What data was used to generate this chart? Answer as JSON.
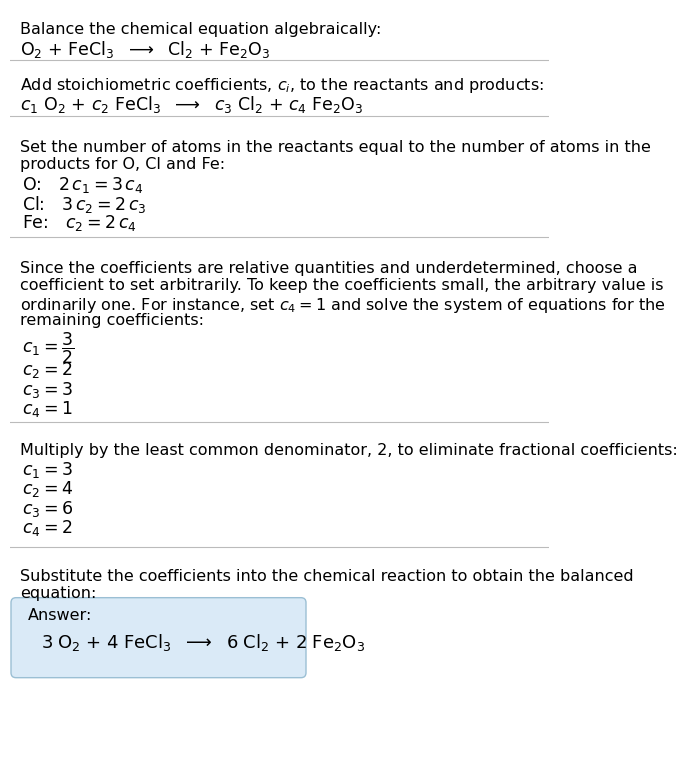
{
  "title": "Balance the chemical equation algebraically:",
  "section1_eq": "O$_2$ + FeCl$_3$  $\\longrightarrow$  Cl$_2$ + Fe$_2$O$_3$",
  "section2_title": "Add stoichiometric coefficients, $c_i$, to the reactants and products:",
  "section2_eq": "$c_1$ O$_2$ + $c_2$ FeCl$_3$  $\\longrightarrow$  $c_3$ Cl$_2$ + $c_4$ Fe$_2$O$_3$",
  "section3_title_lines": [
    "Set the number of atoms in the reactants equal to the number of atoms in the",
    "products for O, Cl and Fe:"
  ],
  "section3_lines": [
    "O:   $2\\,c_1 = 3\\,c_4$",
    "Cl:   $3\\,c_2 = 2\\,c_3$",
    "Fe:   $c_2 = 2\\,c_4$"
  ],
  "section4_title_lines": [
    "Since the coefficients are relative quantities and underdetermined, choose a",
    "coefficient to set arbitrarily. To keep the coefficients small, the arbitrary value is",
    "ordinarily one. For instance, set $c_4 = 1$ and solve the system of equations for the",
    "remaining coefficients:"
  ],
  "section4_lines": [
    "$c_1 = \\dfrac{3}{2}$",
    "$c_2 = 2$",
    "$c_3 = 3$",
    "$c_4 = 1$"
  ],
  "section5_title": "Multiply by the least common denominator, 2, to eliminate fractional coefficients:",
  "section5_lines": [
    "$c_1 = 3$",
    "$c_2 = 4$",
    "$c_3 = 6$",
    "$c_4 = 2$"
  ],
  "section6_title_lines": [
    "Substitute the coefficients into the chemical reaction to obtain the balanced",
    "equation:"
  ],
  "answer_label": "Answer:",
  "answer_eq": "$3\\;$O$_2$ $+$ $4\\;$FeCl$_3$  $\\longrightarrow$  $6\\;$Cl$_2$ $+$ $2\\;$Fe$_2$O$_3$",
  "bg_color": "#ffffff",
  "answer_box_facecolor": "#daeaf7",
  "answer_box_edgecolor": "#9bbfd4",
  "text_color": "#000000",
  "separator_color": "#bbbbbb",
  "font_size": 11.5,
  "font_size_eq": 12.5,
  "fig_width": 5.39,
  "fig_height": 7.52
}
